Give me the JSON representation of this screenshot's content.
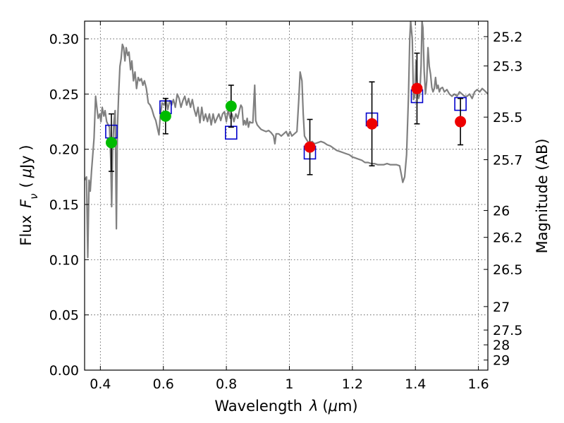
{
  "chart_data": {
    "type": "scatter",
    "title": "",
    "xlabel_text": "Wavelength",
    "xlabel_symbol": "λ",
    "xlabel_unit_pre": "(",
    "xlabel_unit_mu": "μ",
    "xlabel_unit_post": "m)",
    "ylabel_text": "Flux",
    "ylabel_symbol": "F",
    "ylabel_sub": "ν",
    "ylabel_unit_pre": "(",
    "ylabel_unit_mu": "μ",
    "ylabel_unit_post": "Jy )",
    "y2label": "Magnitude (AB)",
    "xlim": [
      0.35,
      1.63
    ],
    "ylim": [
      0.0,
      0.316
    ],
    "grid": true,
    "x_ticks": [
      {
        "v": 0.4,
        "label": "0.4"
      },
      {
        "v": 0.6,
        "label": "0.6"
      },
      {
        "v": 0.8,
        "label": "0.8"
      },
      {
        "v": 1.0,
        "label": "1"
      },
      {
        "v": 1.2,
        "label": "1.2"
      },
      {
        "v": 1.4,
        "label": "1.4"
      },
      {
        "v": 1.6,
        "label": "1.6"
      }
    ],
    "y_ticks": [
      {
        "v": 0.0,
        "label": "0.00"
      },
      {
        "v": 0.05,
        "label": "0.05"
      },
      {
        "v": 0.1,
        "label": "0.10"
      },
      {
        "v": 0.15,
        "label": "0.15"
      },
      {
        "v": 0.2,
        "label": "0.20"
      },
      {
        "v": 0.25,
        "label": "0.25"
      },
      {
        "v": 0.3,
        "label": "0.30"
      }
    ],
    "y2_ticks": [
      {
        "mag": 25.2,
        "label": "25.2"
      },
      {
        "mag": 25.3,
        "label": "25.3"
      },
      {
        "mag": 25.5,
        "label": "25.5"
      },
      {
        "mag": 25.7,
        "label": "25.7"
      },
      {
        "mag": 26.0,
        "label": "26"
      },
      {
        "mag": 26.2,
        "label": "26.2"
      },
      {
        "mag": 26.5,
        "label": "26.5"
      },
      {
        "mag": 27.0,
        "label": "27"
      },
      {
        "mag": 27.5,
        "label": "27.5"
      },
      {
        "mag": 28.0,
        "label": "28"
      },
      {
        "mag": 29.0,
        "label": "29"
      }
    ],
    "model_spectrum": {
      "color": "#808080",
      "points": [
        [
          0.35,
          0.172
        ],
        [
          0.356,
          0.175
        ],
        [
          0.36,
          0.102
        ],
        [
          0.364,
          0.172
        ],
        [
          0.368,
          0.162
        ],
        [
          0.372,
          0.18
        ],
        [
          0.376,
          0.195
        ],
        [
          0.38,
          0.21
        ],
        [
          0.385,
          0.248
        ],
        [
          0.389,
          0.238
        ],
        [
          0.393,
          0.228
        ],
        [
          0.398,
          0.232
        ],
        [
          0.402,
          0.225
        ],
        [
          0.406,
          0.238
        ],
        [
          0.411,
          0.23
        ],
        [
          0.415,
          0.235
        ],
        [
          0.42,
          0.225
        ],
        [
          0.425,
          0.222
        ],
        [
          0.429,
          0.22
        ],
        [
          0.433,
          0.19
        ],
        [
          0.436,
          0.148
        ],
        [
          0.439,
          0.2
        ],
        [
          0.443,
          0.225
        ],
        [
          0.447,
          0.235
        ],
        [
          0.451,
          0.128
        ],
        [
          0.454,
          0.218
        ],
        [
          0.458,
          0.25
        ],
        [
          0.462,
          0.275
        ],
        [
          0.466,
          0.282
        ],
        [
          0.47,
          0.295
        ],
        [
          0.474,
          0.292
        ],
        [
          0.478,
          0.28
        ],
        [
          0.482,
          0.292
        ],
        [
          0.487,
          0.285
        ],
        [
          0.491,
          0.288
        ],
        [
          0.496,
          0.272
        ],
        [
          0.5,
          0.28
        ],
        [
          0.505,
          0.262
        ],
        [
          0.51,
          0.27
        ],
        [
          0.515,
          0.255
        ],
        [
          0.52,
          0.265
        ],
        [
          0.525,
          0.262
        ],
        [
          0.53,
          0.264
        ],
        [
          0.535,
          0.258
        ],
        [
          0.54,
          0.262
        ],
        [
          0.546,
          0.255
        ],
        [
          0.552,
          0.242
        ],
        [
          0.558,
          0.24
        ],
        [
          0.564,
          0.236
        ],
        [
          0.57,
          0.23
        ],
        [
          0.576,
          0.226
        ],
        [
          0.582,
          0.218
        ],
        [
          0.586,
          0.213
        ],
        [
          0.59,
          0.23
        ],
        [
          0.596,
          0.242
        ],
        [
          0.602,
          0.24
        ],
        [
          0.608,
          0.246
        ],
        [
          0.614,
          0.236
        ],
        [
          0.62,
          0.244
        ],
        [
          0.626,
          0.24
        ],
        [
          0.632,
          0.245
        ],
        [
          0.638,
          0.238
        ],
        [
          0.644,
          0.25
        ],
        [
          0.65,
          0.246
        ],
        [
          0.656,
          0.238
        ],
        [
          0.662,
          0.244
        ],
        [
          0.668,
          0.248
        ],
        [
          0.674,
          0.24
        ],
        [
          0.68,
          0.246
        ],
        [
          0.686,
          0.238
        ],
        [
          0.692,
          0.245
        ],
        [
          0.698,
          0.236
        ],
        [
          0.704,
          0.23
        ],
        [
          0.71,
          0.238
        ],
        [
          0.716,
          0.224
        ],
        [
          0.722,
          0.238
        ],
        [
          0.728,
          0.226
        ],
        [
          0.734,
          0.232
        ],
        [
          0.74,
          0.225
        ],
        [
          0.746,
          0.232
        ],
        [
          0.752,
          0.222
        ],
        [
          0.758,
          0.232
        ],
        [
          0.764,
          0.224
        ],
        [
          0.77,
          0.228
        ],
        [
          0.776,
          0.232
        ],
        [
          0.782,
          0.226
        ],
        [
          0.788,
          0.232
        ],
        [
          0.794,
          0.234
        ],
        [
          0.8,
          0.225
        ],
        [
          0.806,
          0.236
        ],
        [
          0.812,
          0.228
        ],
        [
          0.818,
          0.232
        ],
        [
          0.824,
          0.225
        ],
        [
          0.83,
          0.232
        ],
        [
          0.836,
          0.228
        ],
        [
          0.842,
          0.236
        ],
        [
          0.846,
          0.24
        ],
        [
          0.85,
          0.238
        ],
        [
          0.854,
          0.222
        ],
        [
          0.858,
          0.226
        ],
        [
          0.862,
          0.222
        ],
        [
          0.866,
          0.228
        ],
        [
          0.87,
          0.22
        ],
        [
          0.874,
          0.225
        ],
        [
          0.878,
          0.224
        ],
        [
          0.884,
          0.224
        ],
        [
          0.89,
          0.258
        ],
        [
          0.893,
          0.226
        ],
        [
          0.898,
          0.222
        ],
        [
          0.904,
          0.22
        ],
        [
          0.91,
          0.218
        ],
        [
          0.918,
          0.217
        ],
        [
          0.926,
          0.216
        ],
        [
          0.934,
          0.217
        ],
        [
          0.942,
          0.215
        ],
        [
          0.95,
          0.212
        ],
        [
          0.954,
          0.205
        ],
        [
          0.958,
          0.214
        ],
        [
          0.966,
          0.214
        ],
        [
          0.974,
          0.212
        ],
        [
          0.982,
          0.214
        ],
        [
          0.99,
          0.216
        ],
        [
          0.996,
          0.212
        ],
        [
          1.002,
          0.216
        ],
        [
          1.008,
          0.212
        ],
        [
          1.016,
          0.214
        ],
        [
          1.024,
          0.216
        ],
        [
          1.03,
          0.246
        ],
        [
          1.034,
          0.27
        ],
        [
          1.04,
          0.262
        ],
        [
          1.044,
          0.232
        ],
        [
          1.048,
          0.212
        ],
        [
          1.056,
          0.208
        ],
        [
          1.064,
          0.205
        ],
        [
          1.072,
          0.207
        ],
        [
          1.08,
          0.205
        ],
        [
          1.09,
          0.206
        ],
        [
          1.1,
          0.207
        ],
        [
          1.11,
          0.206
        ],
        [
          1.12,
          0.204
        ],
        [
          1.13,
          0.203
        ],
        [
          1.14,
          0.201
        ],
        [
          1.15,
          0.199
        ],
        [
          1.16,
          0.198
        ],
        [
          1.17,
          0.197
        ],
        [
          1.18,
          0.196
        ],
        [
          1.19,
          0.195
        ],
        [
          1.2,
          0.193
        ],
        [
          1.21,
          0.192
        ],
        [
          1.22,
          0.191
        ],
        [
          1.23,
          0.19
        ],
        [
          1.24,
          0.188
        ],
        [
          1.25,
          0.188
        ],
        [
          1.26,
          0.187
        ],
        [
          1.27,
          0.187
        ],
        [
          1.28,
          0.186
        ],
        [
          1.29,
          0.186
        ],
        [
          1.3,
          0.186
        ],
        [
          1.31,
          0.187
        ],
        [
          1.32,
          0.186
        ],
        [
          1.33,
          0.186
        ],
        [
          1.34,
          0.186
        ],
        [
          1.35,
          0.185
        ],
        [
          1.356,
          0.176
        ],
        [
          1.36,
          0.17
        ],
        [
          1.366,
          0.175
        ],
        [
          1.372,
          0.195
        ],
        [
          1.378,
          0.248
        ],
        [
          1.382,
          0.3
        ],
        [
          1.385,
          0.316
        ],
        [
          1.39,
          0.3
        ],
        [
          1.394,
          0.245
        ],
        [
          1.398,
          0.248
        ],
        [
          1.402,
          0.28
        ],
        [
          1.406,
          0.255
        ],
        [
          1.41,
          0.246
        ],
        [
          1.414,
          0.25
        ],
        [
          1.418,
          0.276
        ],
        [
          1.421,
          0.316
        ],
        [
          1.424,
          0.31
        ],
        [
          1.428,
          0.27
        ],
        [
          1.432,
          0.25
        ],
        [
          1.436,
          0.262
        ],
        [
          1.44,
          0.292
        ],
        [
          1.444,
          0.275
        ],
        [
          1.448,
          0.268
        ],
        [
          1.452,
          0.256
        ],
        [
          1.456,
          0.252
        ],
        [
          1.46,
          0.255
        ],
        [
          1.464,
          0.265
        ],
        [
          1.468,
          0.255
        ],
        [
          1.472,
          0.258
        ],
        [
          1.476,
          0.252
        ],
        [
          1.48,
          0.255
        ],
        [
          1.486,
          0.256
        ],
        [
          1.492,
          0.252
        ],
        [
          1.5,
          0.254
        ],
        [
          1.508,
          0.25
        ],
        [
          1.516,
          0.248
        ],
        [
          1.524,
          0.25
        ],
        [
          1.532,
          0.248
        ],
        [
          1.54,
          0.252
        ],
        [
          1.548,
          0.25
        ],
        [
          1.556,
          0.248
        ],
        [
          1.564,
          0.248
        ],
        [
          1.572,
          0.25
        ],
        [
          1.58,
          0.246
        ],
        [
          1.588,
          0.252
        ],
        [
          1.596,
          0.254
        ],
        [
          1.604,
          0.252
        ],
        [
          1.612,
          0.255
        ],
        [
          1.62,
          0.253
        ],
        [
          1.63,
          0.25
        ]
      ]
    },
    "model_photometry": {
      "marker": "open-square",
      "color": "#0000cc",
      "points": [
        {
          "x": 0.435,
          "y": 0.216
        },
        {
          "x": 0.607,
          "y": 0.238
        },
        {
          "x": 0.815,
          "y": 0.215
        },
        {
          "x": 1.065,
          "y": 0.197
        },
        {
          "x": 1.262,
          "y": 0.227
        },
        {
          "x": 1.405,
          "y": 0.248
        },
        {
          "x": 1.543,
          "y": 0.241
        }
      ]
    },
    "observed_photometry": [
      {
        "x": 0.435,
        "y": 0.206,
        "err": 0.026,
        "color": "#00bb00"
      },
      {
        "x": 0.607,
        "y": 0.23,
        "err": 0.016,
        "color": "#00bb00"
      },
      {
        "x": 0.815,
        "y": 0.239,
        "err": 0.019,
        "color": "#00bb00"
      },
      {
        "x": 1.065,
        "y": 0.202,
        "err": 0.025,
        "color": "#ee0000"
      },
      {
        "x": 1.262,
        "y": 0.223,
        "err": 0.038,
        "color": "#ee0000"
      },
      {
        "x": 1.405,
        "y": 0.255,
        "err": 0.032,
        "color": "#ee0000"
      },
      {
        "x": 1.543,
        "y": 0.225,
        "err": 0.021,
        "color": "#ee0000"
      }
    ]
  }
}
